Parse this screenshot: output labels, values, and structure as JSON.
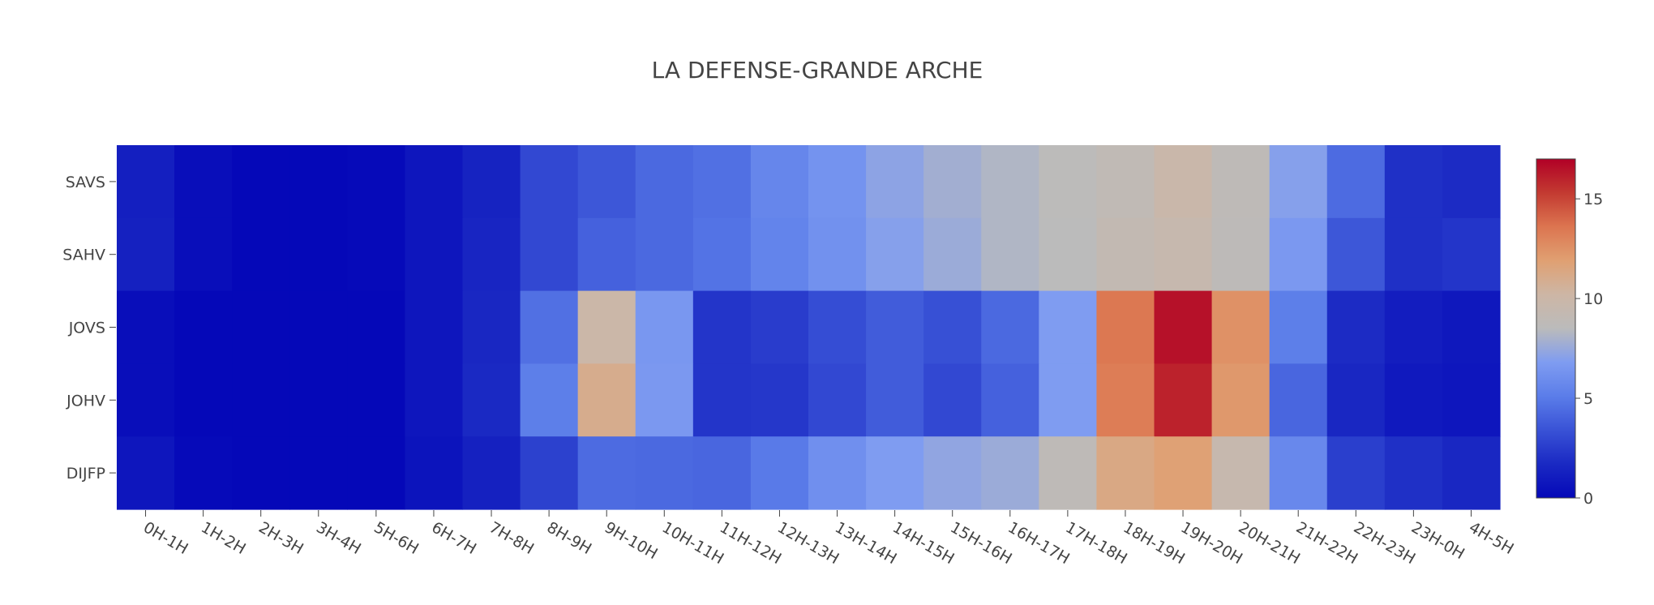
{
  "chart_data": {
    "type": "heatmap",
    "title": "LA DEFENSE-GRANDE ARCHE",
    "x_categories": [
      "0H-1H",
      "1H-2H",
      "2H-3H",
      "3H-4H",
      "5H-6H",
      "6H-7H",
      "7H-8H",
      "8H-9H",
      "9H-10H",
      "10H-11H",
      "11H-12H",
      "12H-13H",
      "13H-14H",
      "14H-15H",
      "15H-16H",
      "16H-17H",
      "17H-18H",
      "18H-19H",
      "19H-20H",
      "20H-21H",
      "21H-22H",
      "22H-23H",
      "23H-0H",
      "4H-5H"
    ],
    "y_categories": [
      "SAVS",
      "SAHV",
      "JOVS",
      "JOHV",
      "DIJFP"
    ],
    "z": [
      [
        1.2,
        0.3,
        0.0,
        0.0,
        0.1,
        0.7,
        1.4,
        3.0,
        3.6,
        4.3,
        4.6,
        5.6,
        6.3,
        7.2,
        7.8,
        8.2,
        8.6,
        9.0,
        9.8,
        8.8,
        7.0,
        4.4,
        2.0,
        1.8
      ],
      [
        1.3,
        0.3,
        0.0,
        0.0,
        0.1,
        0.7,
        1.5,
        3.0,
        4.0,
        4.3,
        4.7,
        5.5,
        6.2,
        7.0,
        7.6,
        8.2,
        8.5,
        9.2,
        9.5,
        8.7,
        6.6,
        3.6,
        2.0,
        2.2
      ],
      [
        0.3,
        0.0,
        0.0,
        0.0,
        0.0,
        0.7,
        1.6,
        4.6,
        10.0,
        6.5,
        2.2,
        2.5,
        3.2,
        3.8,
        3.3,
        4.3,
        6.8,
        13.5,
        16.5,
        12.5,
        5.2,
        1.8,
        1.1,
        0.8
      ],
      [
        0.3,
        0.0,
        0.0,
        0.0,
        0.0,
        0.7,
        1.7,
        5.2,
        11.0,
        6.6,
        2.2,
        2.3,
        3.0,
        3.8,
        3.0,
        4.0,
        6.8,
        13.3,
        16.0,
        12.2,
        4.2,
        1.6,
        0.9,
        0.7
      ],
      [
        0.7,
        0.1,
        0.0,
        0.0,
        0.0,
        0.6,
        1.3,
        2.7,
        4.4,
        4.3,
        4.2,
        5.0,
        6.1,
        6.8,
        7.3,
        7.6,
        8.8,
        11.3,
        11.8,
        9.5,
        5.7,
        2.6,
        2.0,
        1.6
      ]
    ],
    "zmin": 0,
    "zmax": 17,
    "colorbar": {
      "tick_values": [
        0,
        5,
        10,
        15
      ],
      "tick_labels": [
        "0",
        "5",
        "10",
        "15"
      ]
    },
    "colorscale": [
      [
        0.0,
        "#0508b8"
      ],
      [
        0.1,
        "#1a29c3"
      ],
      [
        0.2,
        "#3952d6"
      ],
      [
        0.3,
        "#5b7de9"
      ],
      [
        0.4,
        "#7f9cf1"
      ],
      [
        0.5,
        "#bbbbbb"
      ],
      [
        0.6,
        "#cdb6a5"
      ],
      [
        0.7,
        "#e0a072"
      ],
      [
        0.8,
        "#dc7550"
      ],
      [
        0.9,
        "#c33a31"
      ],
      [
        1.0,
        "#b10026"
      ]
    ],
    "legend": "colorbar-right"
  }
}
